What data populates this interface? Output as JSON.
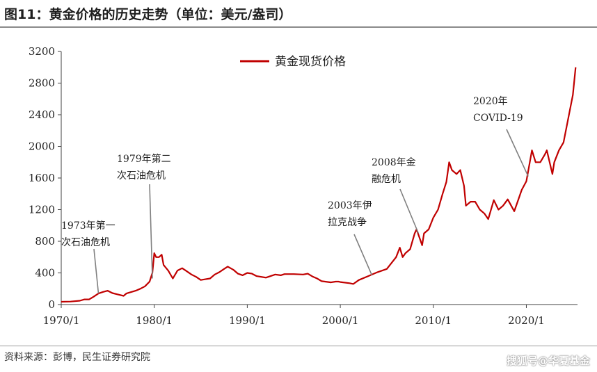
{
  "page": {
    "title": "图11：黄金价格的历史走势（单位：美元/盎司）",
    "source": "资料来源：彭博，民生证券研究院",
    "watermark": "搜狐号@华夏基金"
  },
  "colors": {
    "series": "#c00000",
    "axis": "#404040",
    "annotation_line": "#7f7f7f"
  },
  "chart_data": {
    "type": "line",
    "title": "",
    "xlabel": "",
    "ylabel": "",
    "xlim": [
      1970.0,
      2025.5
    ],
    "ylim": [
      0,
      3200
    ],
    "yticks": [
      0,
      400,
      800,
      1200,
      1600,
      2000,
      2400,
      2800,
      3200
    ],
    "xticks": [
      {
        "value": 1970.0,
        "label": "1970/1"
      },
      {
        "value": 1980.0,
        "label": "1980/1"
      },
      {
        "value": 1990.0,
        "label": "1990/1"
      },
      {
        "value": 2000.0,
        "label": "2000/1"
      },
      {
        "value": 2010.0,
        "label": "2010/1"
      },
      {
        "value": 2020.0,
        "label": "2020/1"
      }
    ],
    "grid": false,
    "legend": "top-center",
    "series": [
      {
        "name": "黄金现货价格",
        "x": [
          1970.0,
          1971.0,
          1972.0,
          1972.5,
          1973.0,
          1973.5,
          1974.0,
          1974.5,
          1975.0,
          1975.5,
          1976.0,
          1976.7,
          1977.0,
          1978.0,
          1978.5,
          1979.0,
          1979.5,
          1979.8,
          1980.0,
          1980.2,
          1980.5,
          1980.8,
          1981.0,
          1981.5,
          1982.0,
          1982.5,
          1983.0,
          1983.5,
          1984.0,
          1984.5,
          1985.0,
          1985.5,
          1986.0,
          1986.5,
          1987.0,
          1987.5,
          1987.9,
          1988.5,
          1989.0,
          1989.5,
          1990.0,
          1990.5,
          1991.0,
          1992.0,
          1993.0,
          1993.6,
          1994.0,
          1995.0,
          1996.0,
          1996.5,
          1997.0,
          1997.5,
          1998.0,
          1999.0,
          1999.5,
          1999.8,
          2000.0,
          2001.0,
          2001.4,
          2002.0,
          2003.0,
          2004.0,
          2005.0,
          2006.0,
          2006.4,
          2006.7,
          2007.0,
          2007.5,
          2008.0,
          2008.2,
          2008.8,
          2009.0,
          2009.5,
          2010.0,
          2010.5,
          2011.0,
          2011.4,
          2011.7,
          2012.0,
          2012.5,
          2012.9,
          2013.3,
          2013.5,
          2014.0,
          2014.5,
          2015.0,
          2015.5,
          2015.9,
          2016.5,
          2017.0,
          2017.5,
          2018.0,
          2018.7,
          2019.0,
          2019.5,
          2020.0,
          2020.6,
          2021.0,
          2021.5,
          2022.0,
          2022.2,
          2022.8,
          2023.0,
          2023.5,
          2024.0,
          2024.5,
          2025.0,
          2025.3
        ],
        "values": [
          35,
          38,
          48,
          65,
          65,
          100,
          140,
          160,
          175,
          145,
          130,
          110,
          140,
          175,
          200,
          230,
          290,
          400,
          650,
          600,
          600,
          630,
          500,
          430,
          330,
          430,
          460,
          420,
          380,
          350,
          310,
          320,
          330,
          380,
          410,
          450,
          480,
          440,
          390,
          370,
          400,
          390,
          360,
          340,
          380,
          370,
          385,
          385,
          380,
          390,
          355,
          330,
          295,
          280,
          290,
          290,
          285,
          270,
          260,
          310,
          360,
          410,
          450,
          600,
          720,
          600,
          650,
          700,
          900,
          950,
          750,
          900,
          950,
          1100,
          1200,
          1400,
          1550,
          1800,
          1700,
          1650,
          1700,
          1500,
          1250,
          1300,
          1300,
          1200,
          1150,
          1080,
          1320,
          1200,
          1250,
          1330,
          1180,
          1280,
          1450,
          1560,
          1950,
          1800,
          1800,
          1900,
          1950,
          1650,
          1800,
          1950,
          2050,
          2350,
          2650,
          3000
        ]
      }
    ],
    "annotations": [
      {
        "lines": [
          "1973年第一",
          "次石油危机"
        ],
        "x": 1974.0,
        "y": 140
      },
      {
        "lines": [
          "1979年第二",
          "次石油危机"
        ],
        "x": 1979.8,
        "y": 330
      },
      {
        "lines": [
          "2003年伊",
          "拉克战争"
        ],
        "x": 2003.4,
        "y": 370
      },
      {
        "lines": [
          "2008年金",
          "融危机"
        ],
        "x": 2008.4,
        "y": 900
      },
      {
        "lines": [
          "2020年",
          "COVID-19"
        ],
        "x": 2020.2,
        "y": 1620
      }
    ]
  }
}
